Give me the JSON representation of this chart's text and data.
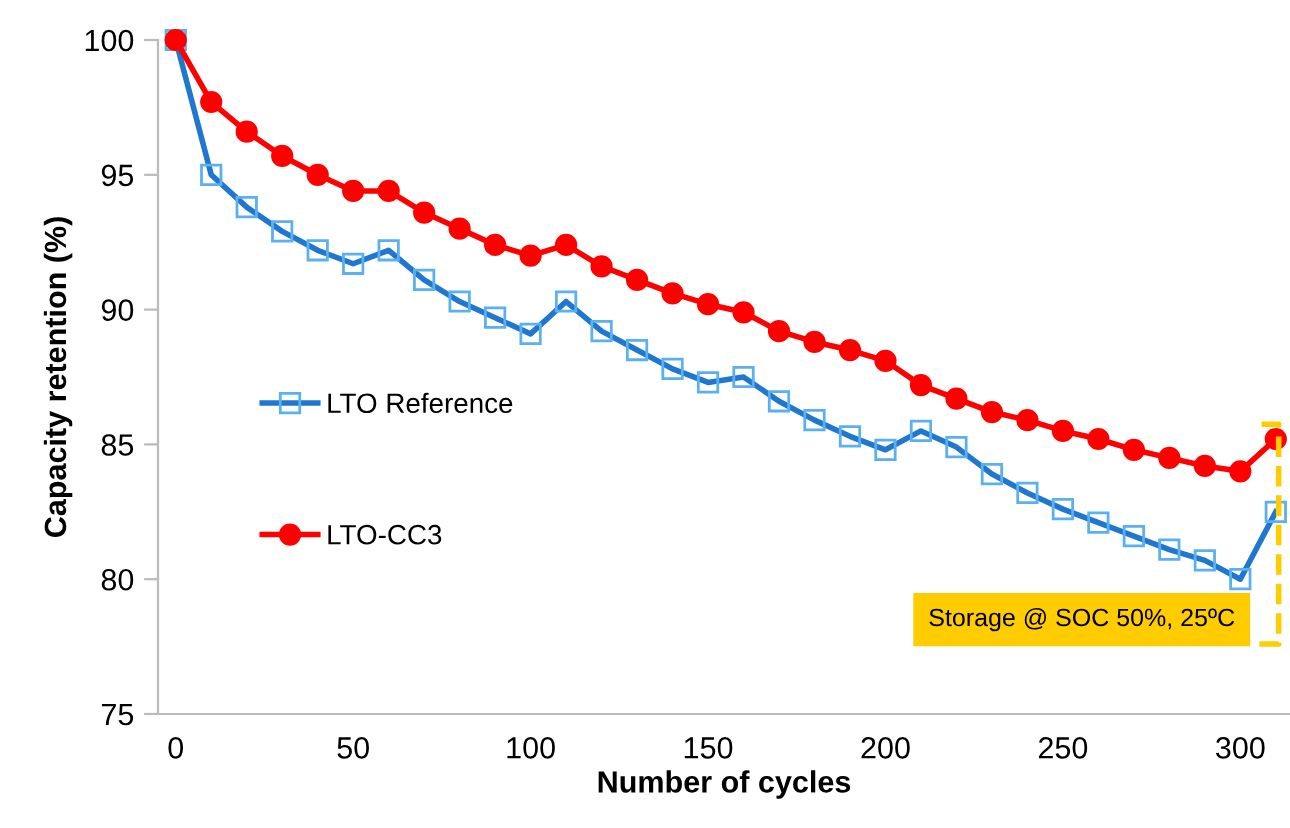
{
  "chart_data": {
    "type": "line",
    "xlabel": "Number of cycles",
    "ylabel": "Capacity retention (%)",
    "x": [
      0,
      10,
      20,
      30,
      40,
      50,
      60,
      70,
      80,
      90,
      100,
      110,
      120,
      130,
      140,
      150,
      160,
      170,
      180,
      190,
      200,
      210,
      220,
      230,
      240,
      250,
      260,
      270,
      280,
      290,
      300,
      310
    ],
    "series": [
      {
        "name": "LTO Reference",
        "color": "#1f77d0",
        "marker": "square",
        "values": [
          100,
          95.0,
          93.8,
          92.9,
          92.2,
          91.7,
          92.2,
          91.1,
          90.3,
          89.7,
          89.1,
          90.3,
          89.2,
          88.5,
          87.8,
          87.3,
          87.5,
          86.6,
          85.9,
          85.3,
          84.8,
          85.5,
          84.9,
          83.9,
          83.2,
          82.6,
          82.1,
          81.6,
          81.1,
          80.7,
          80.0,
          82.5
        ]
      },
      {
        "name": "LTO-CC3",
        "color": "#ff0000",
        "marker": "circle",
        "values": [
          100,
          97.7,
          96.6,
          95.7,
          95.0,
          94.4,
          94.4,
          93.6,
          93.0,
          92.4,
          92.0,
          92.4,
          91.6,
          91.1,
          90.6,
          90.2,
          89.9,
          89.2,
          88.8,
          88.5,
          88.1,
          87.2,
          86.7,
          86.2,
          85.9,
          85.5,
          85.2,
          84.8,
          84.5,
          84.2,
          84.0,
          85.2
        ]
      }
    ],
    "xlim": [
      -5,
      314
    ],
    "xticks": [
      0,
      50,
      100,
      150,
      200,
      250,
      300
    ],
    "ylim": [
      75,
      100
    ],
    "yticks": [
      75,
      80,
      85,
      90,
      95,
      100
    ],
    "grid": false,
    "legend": "left",
    "line_style": "solid",
    "annotations": [
      "Storage @ SOC 50%, 25ºC"
    ]
  }
}
